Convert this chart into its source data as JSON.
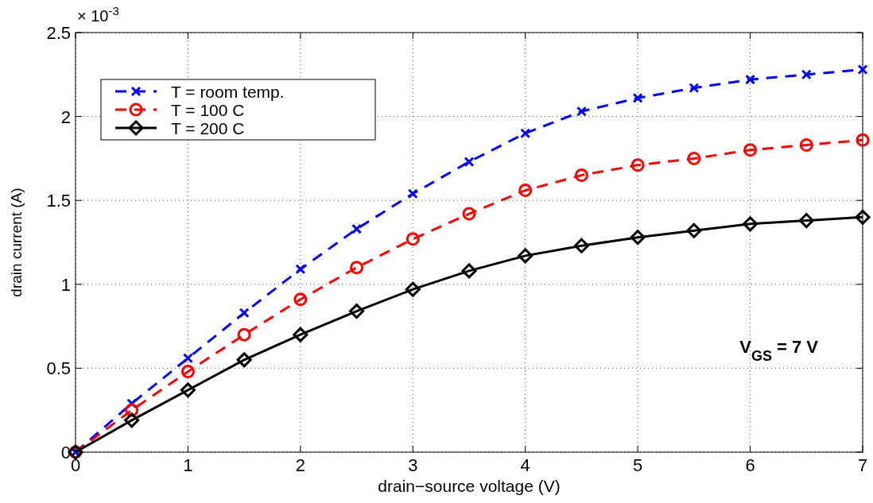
{
  "chart_data": {
    "type": "line",
    "xlabel": "drain−source voltage (V)",
    "ylabel": "drain current (A)",
    "annotations": [
      "× 10$^{-3}$",
      "V$_{GS}$ = 7 V"
    ],
    "x": [
      0,
      0.5,
      1,
      1.5,
      2,
      2.5,
      3,
      3.5,
      4,
      4.5,
      5,
      5.5,
      6,
      6.5,
      7
    ],
    "series": [
      {
        "name": "T = room temp.",
        "color": "#0000ff",
        "marker": "cross",
        "line_style": "dashed",
        "values": [
          0,
          0.29,
          0.56,
          0.83,
          1.09,
          1.33,
          1.54,
          1.73,
          1.9,
          2.03,
          2.11,
          2.17,
          2.22,
          2.25,
          2.28
        ]
      },
      {
        "name": "T = 100 C",
        "color": "#ff0000",
        "marker": "circle",
        "line_style": "dashed",
        "values": [
          0,
          0.25,
          0.48,
          0.7,
          0.91,
          1.1,
          1.27,
          1.42,
          1.56,
          1.65,
          1.71,
          1.75,
          1.8,
          1.83,
          1.86
        ]
      },
      {
        "name": "T = 200 C",
        "color": "#000000",
        "marker": "diamond",
        "line_style": "solid",
        "values": [
          0,
          0.19,
          0.37,
          0.55,
          0.7,
          0.84,
          0.97,
          1.08,
          1.17,
          1.23,
          1.28,
          1.32,
          1.36,
          1.38,
          1.4
        ]
      }
    ],
    "xlim": [
      0,
      7
    ],
    "xticks": [
      0,
      1,
      2,
      3,
      4,
      5,
      6,
      7
    ],
    "ylim": [
      0,
      2.5
    ],
    "yticks": [
      0,
      0.5,
      1,
      1.5,
      2,
      2.5
    ],
    "grid": true,
    "legend": "top left"
  }
}
